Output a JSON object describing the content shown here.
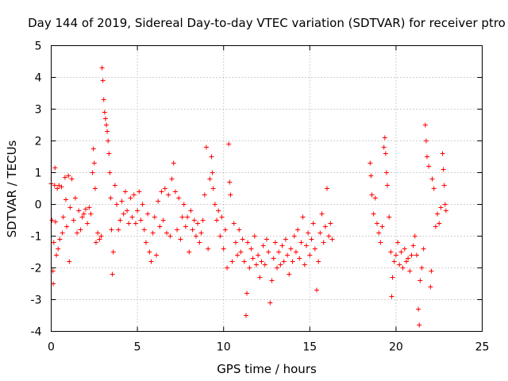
{
  "chart_data": {
    "type": "scatter",
    "title": "Day 144 of 2019, Sidereal Day-to-day VTEC variation (SDTVAR) for receiver ptro",
    "xlabel": "GPS time / hours",
    "ylabel": "SDTVAR / TECUs",
    "xlim": [
      0,
      25
    ],
    "ylim": [
      -4,
      5
    ],
    "x_ticks": [
      "0",
      "5",
      "10",
      "15",
      "20",
      "25"
    ],
    "y_ticks": [
      "-4",
      "-3",
      "-2",
      "-1",
      "0",
      "1",
      "2",
      "3",
      "4",
      "5"
    ],
    "grid": true,
    "marker": "+",
    "color": "#ff0000",
    "series": [
      {
        "name": "SDTVAR",
        "points": [
          [
            0.0,
            0.65
          ],
          [
            0.05,
            -0.5
          ],
          [
            0.1,
            -2.1
          ],
          [
            0.12,
            -2.5
          ],
          [
            0.15,
            -1.2
          ],
          [
            0.2,
            0.6
          ],
          [
            0.22,
            1.15
          ],
          [
            0.25,
            -0.55
          ],
          [
            0.3,
            -1.6
          ],
          [
            0.35,
            0.5
          ],
          [
            0.4,
            -1.4
          ],
          [
            0.45,
            0.6
          ],
          [
            0.5,
            -1.1
          ],
          [
            0.6,
            0.55
          ],
          [
            0.65,
            -0.9
          ],
          [
            0.7,
            -0.4
          ],
          [
            0.8,
            0.85
          ],
          [
            0.85,
            0.15
          ],
          [
            0.9,
            -0.7
          ],
          [
            1.0,
            0.9
          ],
          [
            1.05,
            -1.8
          ],
          [
            1.1,
            -0.1
          ],
          [
            1.2,
            0.8
          ],
          [
            1.3,
            -0.5
          ],
          [
            1.4,
            0.2
          ],
          [
            1.5,
            -0.9
          ],
          [
            1.6,
            -0.2
          ],
          [
            1.7,
            -0.8
          ],
          [
            1.8,
            -0.4
          ],
          [
            1.9,
            -0.3
          ],
          [
            2.0,
            -0.15
          ],
          [
            2.1,
            -0.6
          ],
          [
            2.2,
            -0.1
          ],
          [
            2.3,
            -0.3
          ],
          [
            2.4,
            1.0
          ],
          [
            2.45,
            1.75
          ],
          [
            2.5,
            1.3
          ],
          [
            2.55,
            0.5
          ],
          [
            2.6,
            -1.2
          ],
          [
            2.7,
            -0.9
          ],
          [
            2.8,
            -1.1
          ],
          [
            2.9,
            -1.0
          ],
          [
            2.95,
            4.3
          ],
          [
            3.0,
            3.9
          ],
          [
            3.05,
            3.3
          ],
          [
            3.1,
            2.9
          ],
          [
            3.15,
            2.7
          ],
          [
            3.2,
            2.5
          ],
          [
            3.25,
            2.3
          ],
          [
            3.3,
            2.0
          ],
          [
            3.35,
            1.6
          ],
          [
            3.4,
            1.0
          ],
          [
            3.45,
            0.2
          ],
          [
            3.5,
            -0.8
          ],
          [
            3.55,
            -2.2
          ],
          [
            3.6,
            -1.5
          ],
          [
            3.7,
            0.6
          ],
          [
            3.8,
            0.0
          ],
          [
            3.9,
            -0.8
          ],
          [
            4.0,
            -0.5
          ],
          [
            4.1,
            0.1
          ],
          [
            4.2,
            -0.3
          ],
          [
            4.3,
            0.4
          ],
          [
            4.4,
            -0.2
          ],
          [
            4.5,
            -0.6
          ],
          [
            4.6,
            0.2
          ],
          [
            4.7,
            -0.4
          ],
          [
            4.8,
            0.3
          ],
          [
            4.9,
            -0.6
          ],
          [
            5.0,
            -0.2
          ],
          [
            5.1,
            0.4
          ],
          [
            5.2,
            -0.5
          ],
          [
            5.3,
            0.0
          ],
          [
            5.4,
            -0.8
          ],
          [
            5.5,
            -1.2
          ],
          [
            5.6,
            -0.3
          ],
          [
            5.7,
            -1.5
          ],
          [
            5.8,
            -1.8
          ],
          [
            5.9,
            -0.9
          ],
          [
            6.0,
            -0.4
          ],
          [
            6.1,
            -1.6
          ],
          [
            6.2,
            0.1
          ],
          [
            6.3,
            -0.7
          ],
          [
            6.4,
            0.4
          ],
          [
            6.5,
            -0.5
          ],
          [
            6.6,
            0.5
          ],
          [
            6.7,
            -0.9
          ],
          [
            6.8,
            0.3
          ],
          [
            6.9,
            -1.0
          ],
          [
            7.0,
            0.8
          ],
          [
            7.1,
            1.3
          ],
          [
            7.2,
            0.4
          ],
          [
            7.3,
            -0.8
          ],
          [
            7.4,
            0.2
          ],
          [
            7.5,
            -1.1
          ],
          [
            7.6,
            -0.4
          ],
          [
            7.7,
            0.0
          ],
          [
            7.8,
            -0.7
          ],
          [
            7.9,
            -0.4
          ],
          [
            8.0,
            -1.5
          ],
          [
            8.1,
            -0.2
          ],
          [
            8.2,
            -0.8
          ],
          [
            8.3,
            -0.5
          ],
          [
            8.4,
            -1.0
          ],
          [
            8.5,
            -0.6
          ],
          [
            8.6,
            -1.2
          ],
          [
            8.7,
            -0.9
          ],
          [
            8.8,
            -0.5
          ],
          [
            8.9,
            0.3
          ],
          [
            9.0,
            1.8
          ],
          [
            9.1,
            -1.4
          ],
          [
            9.2,
            0.8
          ],
          [
            9.3,
            1.5
          ],
          [
            9.35,
            1.0
          ],
          [
            9.4,
            0.5
          ],
          [
            9.5,
            0.0
          ],
          [
            9.6,
            -0.5
          ],
          [
            9.7,
            -0.2
          ],
          [
            9.8,
            -1.0
          ],
          [
            9.9,
            -0.4
          ],
          [
            10.0,
            -1.4
          ],
          [
            10.1,
            -0.8
          ],
          [
            10.2,
            -2.0
          ],
          [
            10.3,
            1.9
          ],
          [
            10.35,
            0.7
          ],
          [
            10.4,
            0.3
          ],
          [
            10.5,
            -1.8
          ],
          [
            10.6,
            -0.6
          ],
          [
            10.7,
            -1.2
          ],
          [
            10.8,
            -1.6
          ],
          [
            10.9,
            -0.8
          ],
          [
            11.0,
            -1.5
          ],
          [
            11.1,
            -1.1
          ],
          [
            11.2,
            -1.8
          ],
          [
            11.3,
            -3.5
          ],
          [
            11.35,
            -2.8
          ],
          [
            11.4,
            -1.2
          ],
          [
            11.5,
            -2.0
          ],
          [
            11.6,
            -1.4
          ],
          [
            11.7,
            -1.7
          ],
          [
            11.8,
            -1.0
          ],
          [
            11.9,
            -1.9
          ],
          [
            12.0,
            -1.6
          ],
          [
            12.1,
            -2.3
          ],
          [
            12.2,
            -1.8
          ],
          [
            12.3,
            -1.3
          ],
          [
            12.4,
            -1.9
          ],
          [
            12.5,
            -1.1
          ],
          [
            12.6,
            -1.5
          ],
          [
            12.7,
            -3.1
          ],
          [
            12.8,
            -2.4
          ],
          [
            12.9,
            -1.7
          ],
          [
            13.0,
            -1.2
          ],
          [
            13.1,
            -2.0
          ],
          [
            13.2,
            -1.5
          ],
          [
            13.3,
            -1.9
          ],
          [
            13.4,
            -1.3
          ],
          [
            13.5,
            -1.8
          ],
          [
            13.6,
            -1.1
          ],
          [
            13.7,
            -1.6
          ],
          [
            13.8,
            -2.2
          ],
          [
            13.9,
            -1.4
          ],
          [
            14.0,
            -1.8
          ],
          [
            14.1,
            -1.0
          ],
          [
            14.2,
            -1.5
          ],
          [
            14.3,
            -0.8
          ],
          [
            14.4,
            -1.7
          ],
          [
            14.5,
            -1.2
          ],
          [
            14.6,
            -0.4
          ],
          [
            14.7,
            -1.9
          ],
          [
            14.8,
            -1.3
          ],
          [
            14.9,
            -0.9
          ],
          [
            15.0,
            -1.6
          ],
          [
            15.1,
            -1.1
          ],
          [
            15.2,
            -0.6
          ],
          [
            15.3,
            -1.4
          ],
          [
            15.4,
            -2.7
          ],
          [
            15.5,
            -1.8
          ],
          [
            15.6,
            -0.9
          ],
          [
            15.7,
            -0.3
          ],
          [
            15.8,
            -1.2
          ],
          [
            15.9,
            -0.7
          ],
          [
            16.0,
            0.5
          ],
          [
            16.1,
            -1.0
          ],
          [
            16.2,
            -0.6
          ],
          [
            16.3,
            -1.1
          ],
          [
            18.5,
            1.3
          ],
          [
            18.55,
            0.9
          ],
          [
            18.6,
            0.3
          ],
          [
            18.7,
            -0.3
          ],
          [
            18.8,
            0.2
          ],
          [
            18.9,
            -0.6
          ],
          [
            19.0,
            -0.9
          ],
          [
            19.1,
            -1.2
          ],
          [
            19.2,
            -0.7
          ],
          [
            19.3,
            1.8
          ],
          [
            19.35,
            2.1
          ],
          [
            19.4,
            1.6
          ],
          [
            19.45,
            1.0
          ],
          [
            19.5,
            0.6
          ],
          [
            19.6,
            -0.4
          ],
          [
            19.7,
            -1.5
          ],
          [
            19.75,
            -2.9
          ],
          [
            19.8,
            -2.3
          ],
          [
            19.9,
            -1.8
          ],
          [
            20.0,
            -1.6
          ],
          [
            20.1,
            -1.2
          ],
          [
            20.2,
            -1.9
          ],
          [
            20.3,
            -1.5
          ],
          [
            20.4,
            -2.0
          ],
          [
            20.5,
            -1.4
          ],
          [
            20.6,
            -1.8
          ],
          [
            20.7,
            -1.7
          ],
          [
            20.8,
            -2.1
          ],
          [
            20.9,
            -1.6
          ],
          [
            21.0,
            -1.3
          ],
          [
            21.1,
            -1.0
          ],
          [
            21.2,
            -1.6
          ],
          [
            21.3,
            -3.3
          ],
          [
            21.35,
            -3.8
          ],
          [
            21.4,
            -2.4
          ],
          [
            21.5,
            -2.0
          ],
          [
            21.6,
            -1.4
          ],
          [
            21.7,
            2.5
          ],
          [
            21.75,
            2.0
          ],
          [
            21.8,
            1.5
          ],
          [
            21.9,
            1.2
          ],
          [
            22.0,
            -2.6
          ],
          [
            22.05,
            -2.1
          ],
          [
            22.1,
            0.8
          ],
          [
            22.2,
            0.5
          ],
          [
            22.3,
            -0.7
          ],
          [
            22.4,
            -0.3
          ],
          [
            22.5,
            -0.6
          ],
          [
            22.6,
            -0.1
          ],
          [
            22.7,
            1.6
          ],
          [
            22.75,
            1.1
          ],
          [
            22.8,
            0.6
          ],
          [
            22.85,
            0.0
          ],
          [
            22.9,
            -0.2
          ]
        ]
      }
    ]
  }
}
